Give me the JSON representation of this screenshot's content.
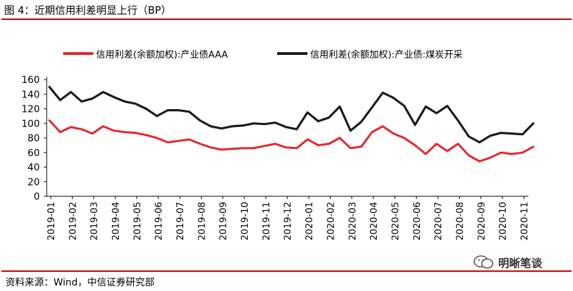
{
  "header": {
    "title": "图 4：近期信用利差明显上行（BP）"
  },
  "footer": {
    "source": "资料来源：Wind，中信证券研究部"
  },
  "watermark": {
    "text": "明晰笔谈",
    "icon": "wechat-icon"
  },
  "colors": {
    "accent": "#c00000",
    "series_red": "#e8232a",
    "series_black": "#1a1a1a"
  },
  "chart_data": {
    "type": "line",
    "title": "",
    "xlabel": "",
    "ylabel": "",
    "ylim": [
      0,
      160
    ],
    "yticks": [
      0,
      20,
      40,
      60,
      80,
      100,
      120,
      140,
      160
    ],
    "x_tick_labels": [
      "2019-01",
      "2019-02",
      "2019-03",
      "2019-04",
      "2019-05",
      "2019-06",
      "2019-07",
      "2019-08",
      "2019-09",
      "2019-10",
      "2019-11",
      "2019-12",
      "2020-01",
      "2020-02",
      "2020-03",
      "2020-04",
      "2020-05",
      "2020-06",
      "2020-07",
      "2020-08",
      "2020-09",
      "2020-10",
      "2020-11"
    ],
    "grid": false,
    "legend_position": "top",
    "x": [
      "2019-01",
      "2019-01",
      "2019-02",
      "2019-02",
      "2019-03",
      "2019-03",
      "2019-04",
      "2019-04",
      "2019-05",
      "2019-05",
      "2019-06",
      "2019-06",
      "2019-07",
      "2019-07",
      "2019-08",
      "2019-08",
      "2019-09",
      "2019-09",
      "2019-10",
      "2019-10",
      "2019-11",
      "2019-11",
      "2019-12",
      "2019-12",
      "2020-01",
      "2020-01",
      "2020-02",
      "2020-02",
      "2020-03",
      "2020-03",
      "2020-04",
      "2020-04",
      "2020-05",
      "2020-05",
      "2020-06",
      "2020-06",
      "2020-07",
      "2020-07",
      "2020-08",
      "2020-08",
      "2020-09",
      "2020-09",
      "2020-10",
      "2020-10",
      "2020-11",
      "2020-11"
    ],
    "series": [
      {
        "name": "信用利差(余额加权):产业债AAA",
        "color": "#e8232a",
        "values": [
          104,
          88,
          95,
          92,
          86,
          96,
          90,
          88,
          87,
          84,
          80,
          74,
          76,
          78,
          72,
          67,
          64,
          65,
          66,
          66,
          69,
          72,
          67,
          66,
          78,
          70,
          72,
          80,
          66,
          68,
          88,
          96,
          86,
          80,
          70,
          58,
          72,
          62,
          72,
          56,
          48,
          53,
          60,
          58,
          60,
          68
        ]
      },
      {
        "name": "信用利差(余额加权):产业债:煤炭开采",
        "color": "#1a1a1a",
        "values": [
          150,
          132,
          143,
          130,
          134,
          143,
          136,
          130,
          127,
          120,
          110,
          118,
          118,
          116,
          104,
          96,
          93,
          96,
          97,
          100,
          99,
          101,
          95,
          92,
          115,
          103,
          108,
          123,
          90,
          102,
          122,
          142,
          135,
          124,
          98,
          123,
          114,
          124,
          104,
          82,
          74,
          83,
          87,
          86,
          85,
          100
        ]
      }
    ]
  }
}
